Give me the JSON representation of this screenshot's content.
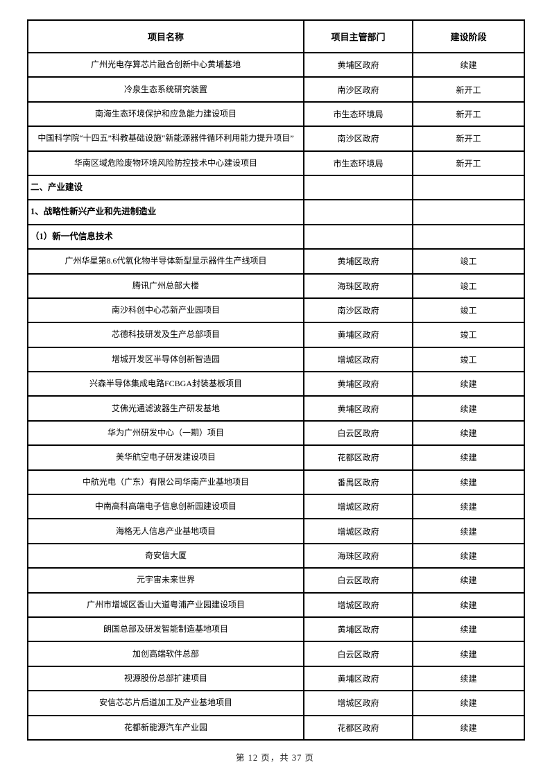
{
  "colors": {
    "page_background": "#ffffff",
    "table_border": "#000000",
    "text": "#000000"
  },
  "table": {
    "columns": [
      "项目名称",
      "项目主管部门",
      "建设阶段"
    ],
    "rows": [
      {
        "type": "data",
        "name": "广州光电存算芯片融合创新中心黄埔基地",
        "dept": "黄埔区政府",
        "stage": "续建"
      },
      {
        "type": "data",
        "name": "冷泉生态系统研究装置",
        "dept": "南沙区政府",
        "stage": "新开工"
      },
      {
        "type": "data",
        "name": "南海生态环境保护和应急能力建设项目",
        "dept": "市生态环境局",
        "stage": "新开工"
      },
      {
        "type": "data",
        "name": "中国科学院“十四五”科教基础设施“新能源器件循环利用能力提升项目”",
        "dept": "南沙区政府",
        "stage": "新开工"
      },
      {
        "type": "data",
        "name": "华南区域危险废物环境风险防控技术中心建设项目",
        "dept": "市生态环境局",
        "stage": "新开工"
      },
      {
        "type": "section",
        "name": "二、产业建设",
        "dept": "",
        "stage": ""
      },
      {
        "type": "section",
        "name": "1、战略性新兴产业和先进制造业",
        "dept": "",
        "stage": ""
      },
      {
        "type": "section",
        "name": "（1）新一代信息技术",
        "dept": "",
        "stage": ""
      },
      {
        "type": "data",
        "name": "广州华星第8.6代氧化物半导体新型显示器件生产线项目",
        "dept": "黄埔区政府",
        "stage": "竣工"
      },
      {
        "type": "data",
        "name": "腾讯广州总部大楼",
        "dept": "海珠区政府",
        "stage": "竣工"
      },
      {
        "type": "data",
        "name": "南沙科创中心芯新产业园项目",
        "dept": "南沙区政府",
        "stage": "竣工"
      },
      {
        "type": "data",
        "name": "芯德科技研发及生产总部项目",
        "dept": "黄埔区政府",
        "stage": "竣工"
      },
      {
        "type": "data",
        "name": "增城开发区半导体创新智造园",
        "dept": "增城区政府",
        "stage": "竣工"
      },
      {
        "type": "data",
        "name": "兴森半导体集成电路FCBGA封装基板项目",
        "dept": "黄埔区政府",
        "stage": "续建"
      },
      {
        "type": "data",
        "name": "艾佛光通滤波器生产研发基地",
        "dept": "黄埔区政府",
        "stage": "续建"
      },
      {
        "type": "data",
        "name": "华为广州研发中心（一期）项目",
        "dept": "白云区政府",
        "stage": "续建"
      },
      {
        "type": "data",
        "name": "美华航空电子研发建设项目",
        "dept": "花都区政府",
        "stage": "续建"
      },
      {
        "type": "data",
        "name": "中航光电（广东）有限公司华南产业基地项目",
        "dept": "番禺区政府",
        "stage": "续建"
      },
      {
        "type": "data",
        "name": "中南高科高端电子信息创新园建设项目",
        "dept": "增城区政府",
        "stage": "续建"
      },
      {
        "type": "data",
        "name": "海格无人信息产业基地项目",
        "dept": "增城区政府",
        "stage": "续建"
      },
      {
        "type": "data",
        "name": "奇安信大厦",
        "dept": "海珠区政府",
        "stage": "续建"
      },
      {
        "type": "data",
        "name": "元宇宙未来世界",
        "dept": "白云区政府",
        "stage": "续建"
      },
      {
        "type": "data",
        "name": "广州市增城区香山大道粤浦产业园建设项目",
        "dept": "增城区政府",
        "stage": "续建"
      },
      {
        "type": "data",
        "name": "朗国总部及研发智能制造基地项目",
        "dept": "黄埔区政府",
        "stage": "续建"
      },
      {
        "type": "data",
        "name": "加创高端软件总部",
        "dept": "白云区政府",
        "stage": "续建"
      },
      {
        "type": "data",
        "name": "视源股份总部扩建项目",
        "dept": "黄埔区政府",
        "stage": "续建"
      },
      {
        "type": "data",
        "name": "安信芯芯片后道加工及产业基地项目",
        "dept": "增城区政府",
        "stage": "续建"
      },
      {
        "type": "data",
        "name": "花都新能源汽车产业园",
        "dept": "花都区政府",
        "stage": "续建"
      }
    ]
  },
  "footer": {
    "page_info": "第 12 页，共 37 页"
  }
}
